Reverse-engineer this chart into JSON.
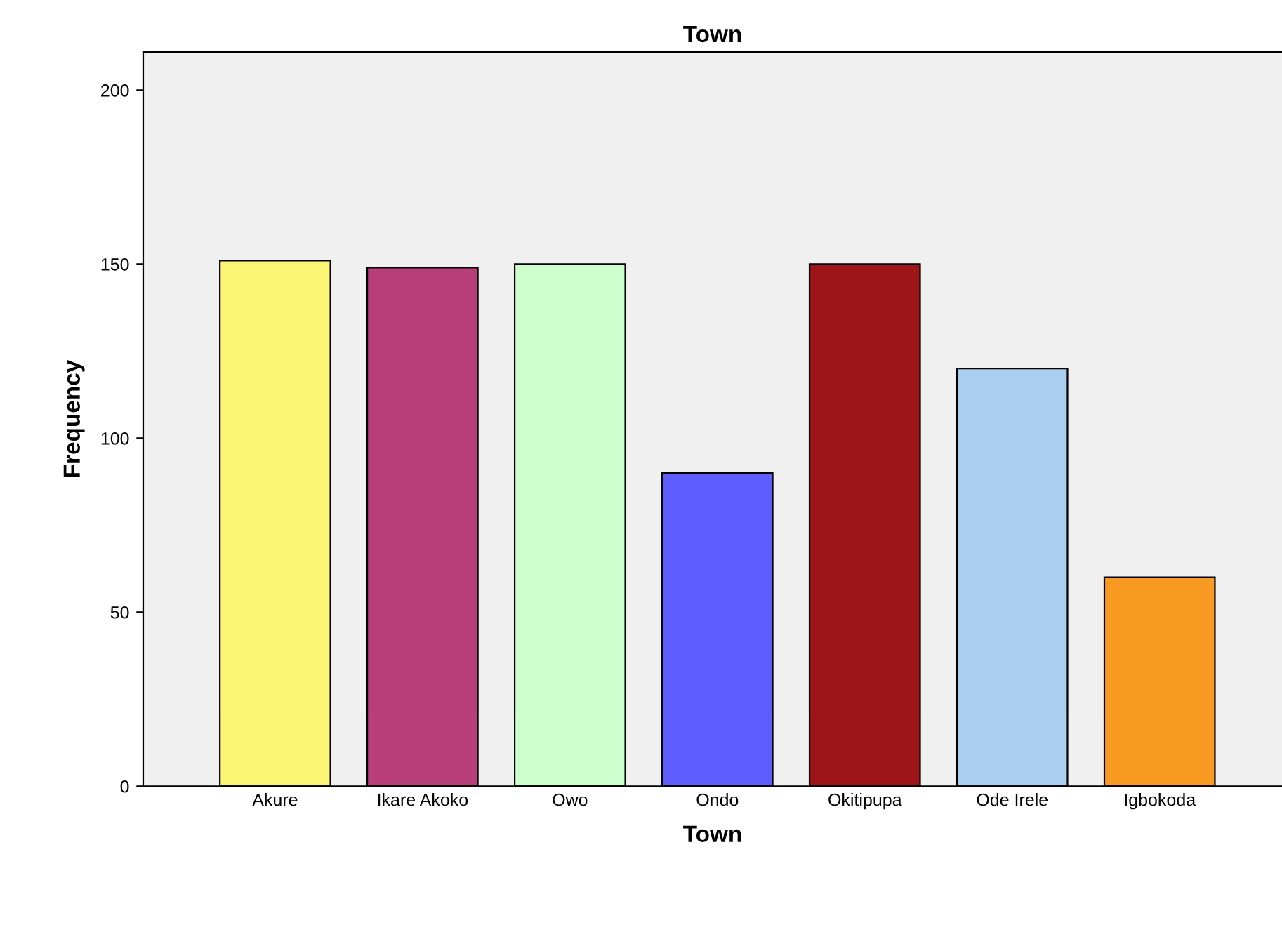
{
  "chart_data": {
    "type": "bar",
    "title": "Town",
    "xlabel": "Town",
    "ylabel": "Frequency",
    "categories": [
      "Akure",
      "Ikare Akoko",
      "Owo",
      "Ondo",
      "Okitipupa",
      "Ode Irele",
      "Igbokoda"
    ],
    "values": [
      151,
      149,
      150,
      90,
      150,
      120,
      60
    ],
    "colors": [
      "#fbf574",
      "#b93f7b",
      "#ccffcc",
      "#5e5efe",
      "#9e1519",
      "#aacfee",
      "#f99b22"
    ],
    "ylim": [
      0,
      211
    ],
    "yticks": [
      0,
      50,
      100,
      150,
      200
    ],
    "grid": false,
    "legend": false
  }
}
